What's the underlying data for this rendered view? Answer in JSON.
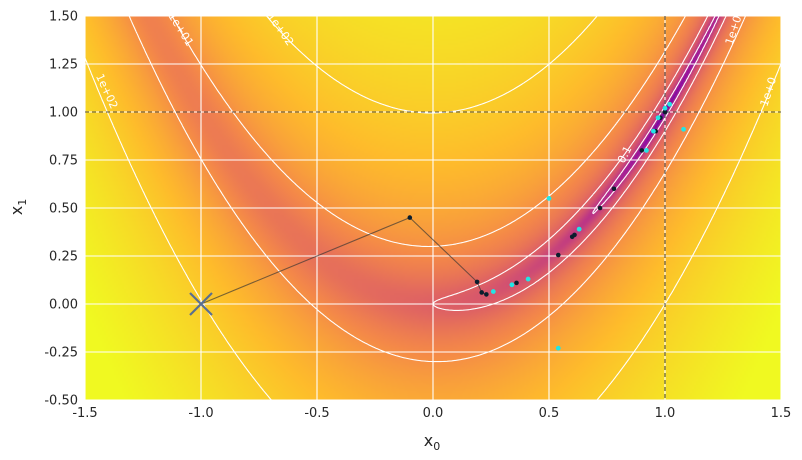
{
  "chart_data": {
    "type": "contour-optimization",
    "xlim": [
      -1.5,
      1.5
    ],
    "ylim": [
      -0.5,
      1.5
    ],
    "xticks": [
      "-1.5",
      "-1.0",
      "-0.5",
      "0.0",
      "0.5",
      "1.0",
      "1.5"
    ],
    "yticks": [
      "-0.50",
      "-0.25",
      "0.00",
      "0.25",
      "0.50",
      "0.75",
      "1.00",
      "1.25",
      "1.50"
    ],
    "xlabel": "x",
    "xlabel_sub": "0",
    "ylabel": "x",
    "ylabel_sub": "1",
    "grid": true,
    "function": "rosenbrock",
    "colormap": "plasma",
    "colors": {
      "grid": "#ffffff",
      "contour": "#ffffff",
      "reference": "#555555",
      "start_marker": "#5a6f8f",
      "path": "#333333",
      "points_dark": "#0b1e2e",
      "points_cyan": "#22e5e5"
    },
    "contour_levels": [
      0.1,
      1,
      10,
      100
    ],
    "contour_labels": [
      {
        "text": "1e+02",
        "x": -1.42,
        "y": 1.1,
        "angle": 65
      },
      {
        "text": "1e+01",
        "x": -1.1,
        "y": 1.42,
        "angle": 58
      },
      {
        "text": "1e+02",
        "x": -0.67,
        "y": 1.42,
        "angle": 55
      },
      {
        "text": "1e+0",
        "x": 1.31,
        "y": 1.42,
        "angle": -72
      },
      {
        "text": "1e+0",
        "x": 1.46,
        "y": 1.1,
        "angle": -72
      },
      {
        "text": "0.1",
        "x": 0.84,
        "y": 0.77,
        "angle": -63
      }
    ],
    "reference_point": {
      "x": 1.0,
      "y": 1.0
    },
    "start_point": {
      "x": -1.0,
      "y": 0.0
    },
    "path_points": [
      {
        "x": -1.0,
        "y": 0.0
      },
      {
        "x": -0.1,
        "y": 0.45
      },
      {
        "x": 0.19,
        "y": 0.115
      },
      {
        "x": 0.21,
        "y": 0.06
      },
      {
        "x": 0.23,
        "y": 0.05
      }
    ],
    "points_dark": [
      {
        "x": -0.1,
        "y": 0.45
      },
      {
        "x": 0.19,
        "y": 0.115
      },
      {
        "x": 0.21,
        "y": 0.06
      },
      {
        "x": 0.23,
        "y": 0.05
      },
      {
        "x": 0.36,
        "y": 0.11
      },
      {
        "x": 0.54,
        "y": 0.255
      },
      {
        "x": 0.6,
        "y": 0.35
      },
      {
        "x": 0.61,
        "y": 0.36
      },
      {
        "x": 0.72,
        "y": 0.5
      },
      {
        "x": 0.78,
        "y": 0.6
      },
      {
        "x": 0.9,
        "y": 0.8
      },
      {
        "x": 0.96,
        "y": 0.9
      },
      {
        "x": 0.98,
        "y": 0.97
      },
      {
        "x": 1.0,
        "y": 1.0
      }
    ],
    "points_cyan": [
      {
        "x": 0.26,
        "y": 0.065
      },
      {
        "x": 0.34,
        "y": 0.1
      },
      {
        "x": 0.41,
        "y": 0.13
      },
      {
        "x": 0.5,
        "y": 0.55
      },
      {
        "x": 0.54,
        "y": -0.23
      },
      {
        "x": 0.63,
        "y": 0.39
      },
      {
        "x": 0.92,
        "y": 0.8
      },
      {
        "x": 0.95,
        "y": 0.9
      },
      {
        "x": 0.97,
        "y": 0.97
      },
      {
        "x": 1.0,
        "y": 1.02
      },
      {
        "x": 1.02,
        "y": 1.04
      },
      {
        "x": 1.08,
        "y": 0.91
      }
    ]
  }
}
